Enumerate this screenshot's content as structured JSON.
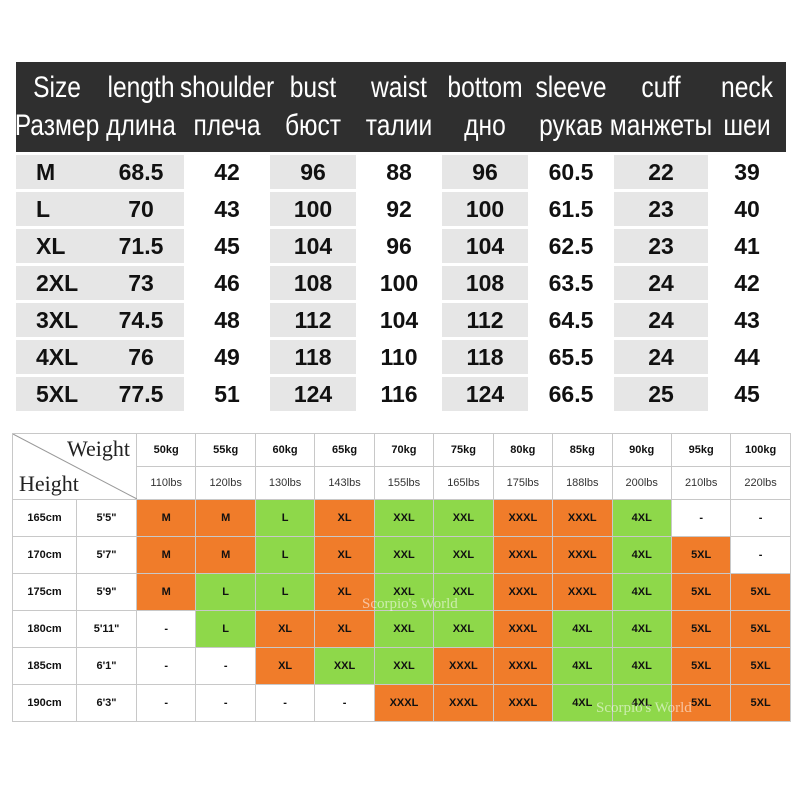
{
  "size_table": {
    "headers": [
      {
        "en": "Size",
        "ru": "Размер"
      },
      {
        "en": "length",
        "ru": "длина"
      },
      {
        "en": "shoulder",
        "ru": "плеча"
      },
      {
        "en": "bust",
        "ru": "бюст"
      },
      {
        "en": "waist",
        "ru": "талии"
      },
      {
        "en": "bottom",
        "ru": "дно"
      },
      {
        "en": "sleeve",
        "ru": "рукав"
      },
      {
        "en": "cuff",
        "ru": "манжеты"
      },
      {
        "en": "neck",
        "ru": "шеи"
      }
    ],
    "rows": [
      [
        "M",
        "68.5",
        "42",
        "96",
        "88",
        "96",
        "60.5",
        "22",
        "39"
      ],
      [
        "L",
        "70",
        "43",
        "100",
        "92",
        "100",
        "61.5",
        "23",
        "40"
      ],
      [
        "XL",
        "71.5",
        "45",
        "104",
        "96",
        "104",
        "62.5",
        "23",
        "41"
      ],
      [
        "2XL",
        "73",
        "46",
        "108",
        "100",
        "108",
        "63.5",
        "24",
        "42"
      ],
      [
        "3XL",
        "74.5",
        "48",
        "112",
        "104",
        "112",
        "64.5",
        "24",
        "43"
      ],
      [
        "4XL",
        "76",
        "49",
        "118",
        "110",
        "118",
        "65.5",
        "24",
        "44"
      ],
      [
        "5XL",
        "77.5",
        "51",
        "124",
        "116",
        "124",
        "66.5",
        "25",
        "45"
      ]
    ]
  },
  "weight_height_table": {
    "weight_label": "Weight",
    "height_label": "Height",
    "weights_kg": [
      "50kg",
      "55kg",
      "60kg",
      "65kg",
      "70kg",
      "75kg",
      "80kg",
      "85kg",
      "90kg",
      "95kg",
      "100kg"
    ],
    "weights_lbs": [
      "110lbs",
      "120lbs",
      "130lbs",
      "143lbs",
      "155lbs",
      "165lbs",
      "175lbs",
      "188lbs",
      "200lbs",
      "210lbs",
      "220lbs"
    ],
    "rows": [
      {
        "cm": "165cm",
        "ft": "5'5\"",
        "cells": [
          {
            "v": "M",
            "c": "orange"
          },
          {
            "v": "M",
            "c": "orange"
          },
          {
            "v": "L",
            "c": "green"
          },
          {
            "v": "XL",
            "c": "orange"
          },
          {
            "v": "XXL",
            "c": "green"
          },
          {
            "v": "XXL",
            "c": "green"
          },
          {
            "v": "XXXL",
            "c": "orange"
          },
          {
            "v": "XXXL",
            "c": "orange"
          },
          {
            "v": "4XL",
            "c": "green"
          },
          {
            "v": "-",
            "c": "none"
          },
          {
            "v": "-",
            "c": "none"
          }
        ]
      },
      {
        "cm": "170cm",
        "ft": "5'7\"",
        "cells": [
          {
            "v": "M",
            "c": "orange"
          },
          {
            "v": "M",
            "c": "orange"
          },
          {
            "v": "L",
            "c": "green"
          },
          {
            "v": "XL",
            "c": "orange"
          },
          {
            "v": "XXL",
            "c": "green"
          },
          {
            "v": "XXL",
            "c": "green"
          },
          {
            "v": "XXXL",
            "c": "orange"
          },
          {
            "v": "XXXL",
            "c": "orange"
          },
          {
            "v": "4XL",
            "c": "green"
          },
          {
            "v": "5XL",
            "c": "orange"
          },
          {
            "v": "-",
            "c": "none"
          }
        ]
      },
      {
        "cm": "175cm",
        "ft": "5'9\"",
        "cells": [
          {
            "v": "M",
            "c": "orange"
          },
          {
            "v": "L",
            "c": "green"
          },
          {
            "v": "L",
            "c": "green"
          },
          {
            "v": "XL",
            "c": "orange"
          },
          {
            "v": "XXL",
            "c": "green"
          },
          {
            "v": "XXL",
            "c": "green"
          },
          {
            "v": "XXXL",
            "c": "orange"
          },
          {
            "v": "XXXL",
            "c": "orange"
          },
          {
            "v": "4XL",
            "c": "green"
          },
          {
            "v": "5XL",
            "c": "orange"
          },
          {
            "v": "5XL",
            "c": "orange"
          }
        ]
      },
      {
        "cm": "180cm",
        "ft": "5'11\"",
        "cells": [
          {
            "v": "-",
            "c": "none"
          },
          {
            "v": "L",
            "c": "green"
          },
          {
            "v": "XL",
            "c": "orange"
          },
          {
            "v": "XL",
            "c": "orange"
          },
          {
            "v": "XXL",
            "c": "green"
          },
          {
            "v": "XXL",
            "c": "green"
          },
          {
            "v": "XXXL",
            "c": "orange"
          },
          {
            "v": "4XL",
            "c": "green"
          },
          {
            "v": "4XL",
            "c": "green"
          },
          {
            "v": "5XL",
            "c": "orange"
          },
          {
            "v": "5XL",
            "c": "orange"
          }
        ]
      },
      {
        "cm": "185cm",
        "ft": "6'1\"",
        "cells": [
          {
            "v": "-",
            "c": "none"
          },
          {
            "v": "-",
            "c": "none"
          },
          {
            "v": "XL",
            "c": "orange"
          },
          {
            "v": "XXL",
            "c": "green"
          },
          {
            "v": "XXL",
            "c": "green"
          },
          {
            "v": "XXXL",
            "c": "orange"
          },
          {
            "v": "XXXL",
            "c": "orange"
          },
          {
            "v": "4XL",
            "c": "green"
          },
          {
            "v": "4XL",
            "c": "green"
          },
          {
            "v": "5XL",
            "c": "orange"
          },
          {
            "v": "5XL",
            "c": "orange"
          }
        ]
      },
      {
        "cm": "190cm",
        "ft": "6'3\"",
        "cells": [
          {
            "v": "-",
            "c": "none"
          },
          {
            "v": "-",
            "c": "none"
          },
          {
            "v": "-",
            "c": "none"
          },
          {
            "v": "-",
            "c": "none"
          },
          {
            "v": "XXXL",
            "c": "orange"
          },
          {
            "v": "XXXL",
            "c": "orange"
          },
          {
            "v": "XXXL",
            "c": "orange"
          },
          {
            "v": "4XL",
            "c": "green"
          },
          {
            "v": "4XL",
            "c": "green"
          },
          {
            "v": "5XL",
            "c": "orange"
          },
          {
            "v": "5XL",
            "c": "orange"
          }
        ]
      }
    ]
  },
  "colors": {
    "header_bg": "#2f2f2f",
    "orange": "#f07c2a",
    "green": "#8ed84a",
    "stripe": "#e6e6e6"
  },
  "watermarks": [
    "Scorpio's World",
    "Scorpio's World"
  ]
}
